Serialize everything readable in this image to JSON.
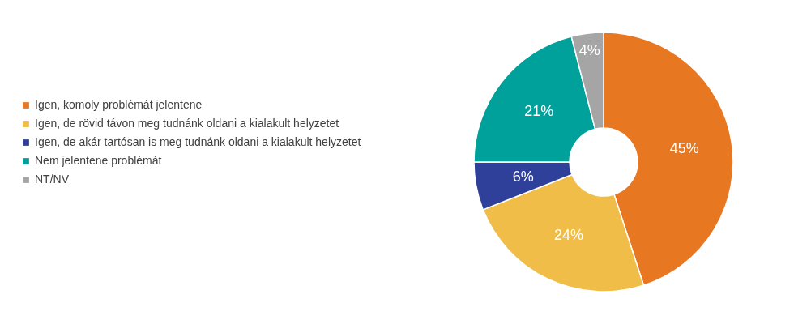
{
  "chart_data": {
    "type": "donut",
    "categories": [
      "Igen, komoly problémát jelentene",
      "Igen, de rövid távon meg tudnánk oldani a kialakult helyzetet",
      "Igen, de akár tartósan is meg tudnánk oldani a kialakult helyzetet",
      "Nem jelentene problémát",
      "NT/NV"
    ],
    "values": [
      45,
      24,
      6,
      21,
      4
    ],
    "value_labels": [
      "45%",
      "24%",
      "6%",
      "21%",
      "4%"
    ],
    "colors": [
      "#e87722",
      "#f0be48",
      "#2e4099",
      "#00a19b",
      "#a5a5a5"
    ],
    "legend": "left"
  }
}
